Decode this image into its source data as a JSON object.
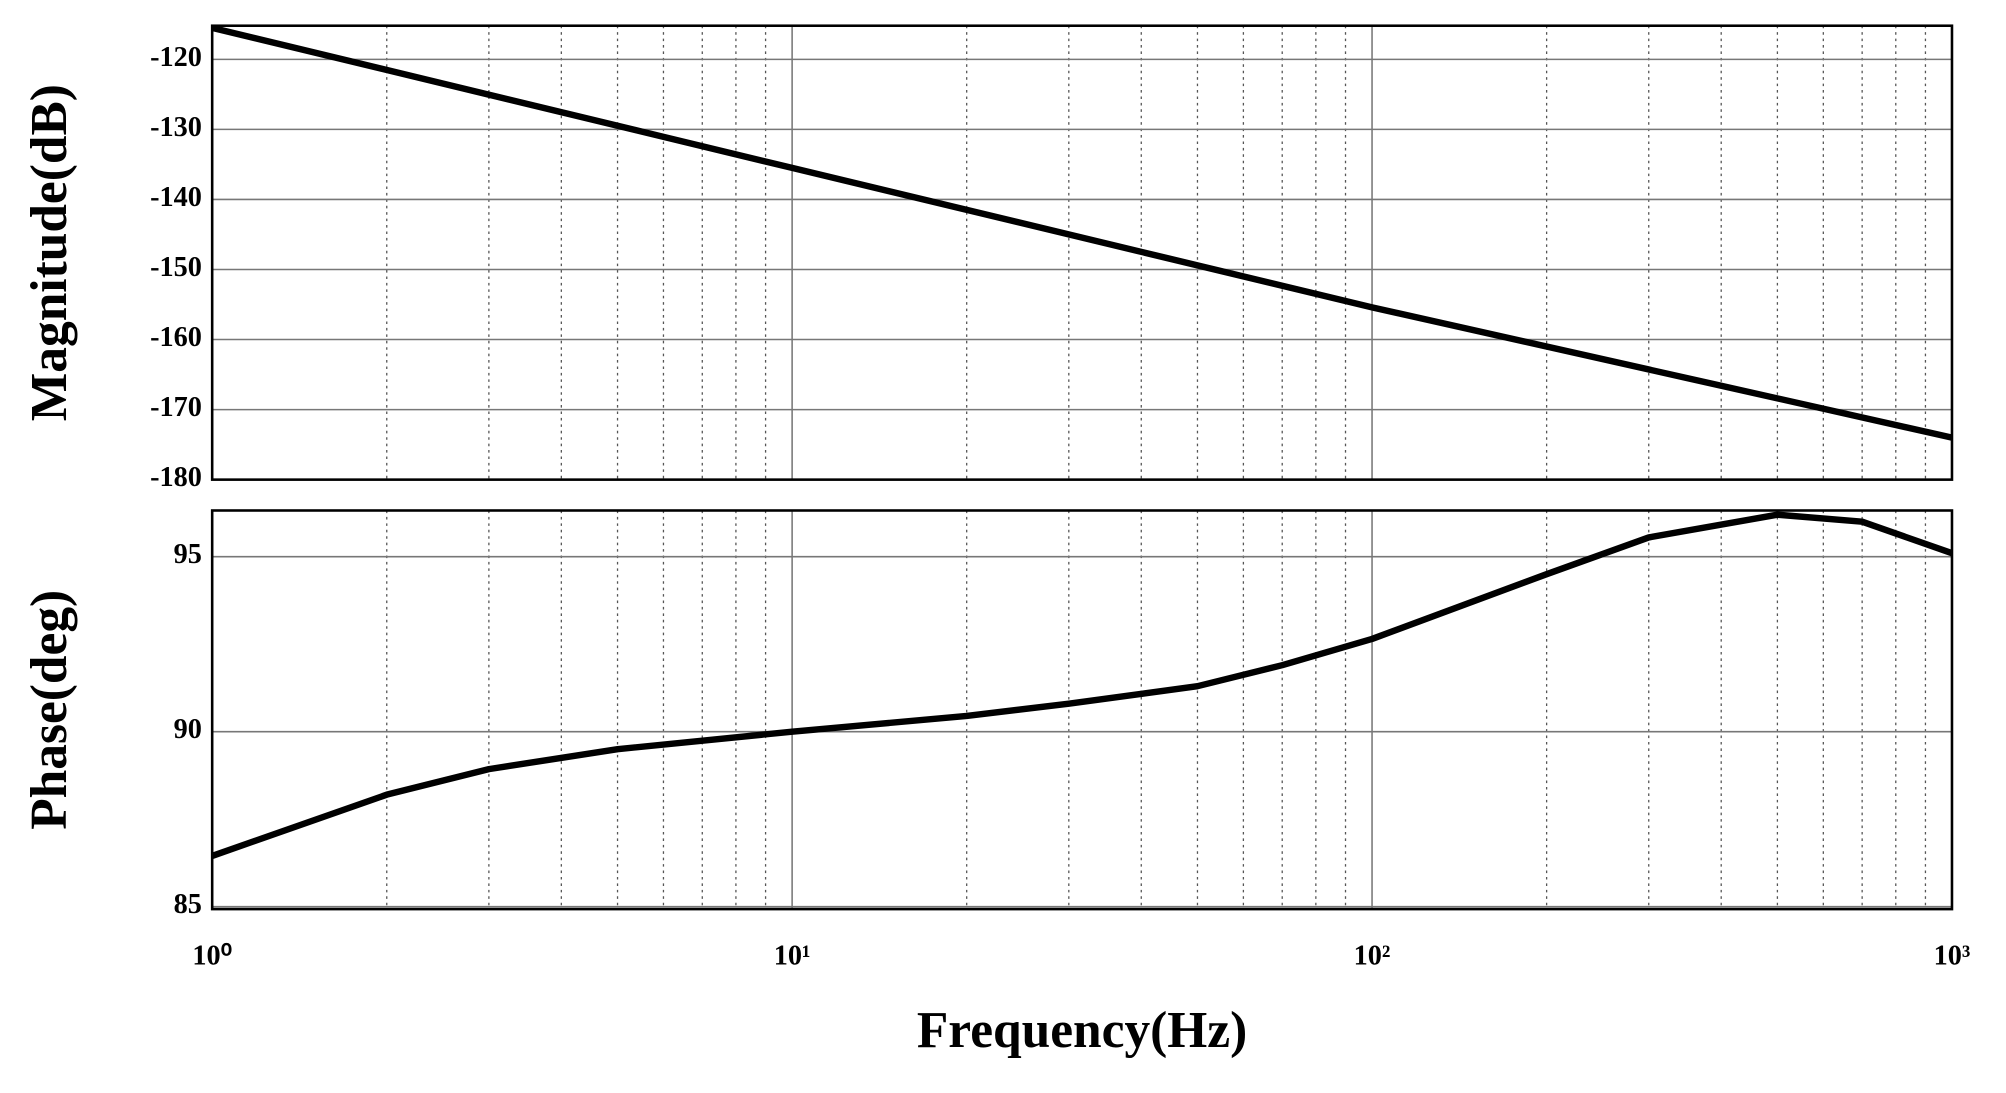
{
  "chart_data": [
    {
      "type": "line",
      "ylabel": "Magnitude(dB)",
      "x": [
        1,
        10,
        100,
        1000
      ],
      "series": [
        {
          "color": "#000000",
          "values": [
            -115.5,
            -135.5,
            -155.4,
            -174
          ]
        }
      ],
      "xscale": "log",
      "xlim": [
        1,
        1000
      ],
      "xticks": [
        1,
        10,
        100,
        1000
      ],
      "ylim": [
        -180,
        -115.2
      ],
      "yticks": [
        -180,
        -170,
        -160,
        -150,
        -140,
        -130,
        -120
      ],
      "grid": true
    },
    {
      "type": "line",
      "ylabel": "Phase(deg)",
      "xlabel": "Frequency(Hz)",
      "x": [
        1,
        2,
        3,
        5,
        10,
        20,
        30,
        50,
        70,
        100,
        200,
        300,
        500,
        700,
        1000
      ],
      "series": [
        {
          "color": "#000000",
          "values": [
            86.45,
            88.2,
            88.93,
            89.5,
            90.0,
            90.45,
            90.8,
            91.3,
            91.9,
            92.65,
            94.5,
            95.55,
            96.2,
            96.0,
            95.1
          ]
        }
      ],
      "xscale": "log",
      "xlim": [
        1,
        1000
      ],
      "xticks": [
        {
          "value": 1,
          "label": "10⁰"
        },
        {
          "value": 10,
          "label": "10¹"
        },
        {
          "value": 100,
          "label": "10²"
        },
        {
          "value": 1000,
          "label": "10³"
        }
      ],
      "ylim": [
        84.93,
        96.32
      ],
      "yticks": [
        85,
        90,
        95
      ],
      "grid": true
    }
  ]
}
